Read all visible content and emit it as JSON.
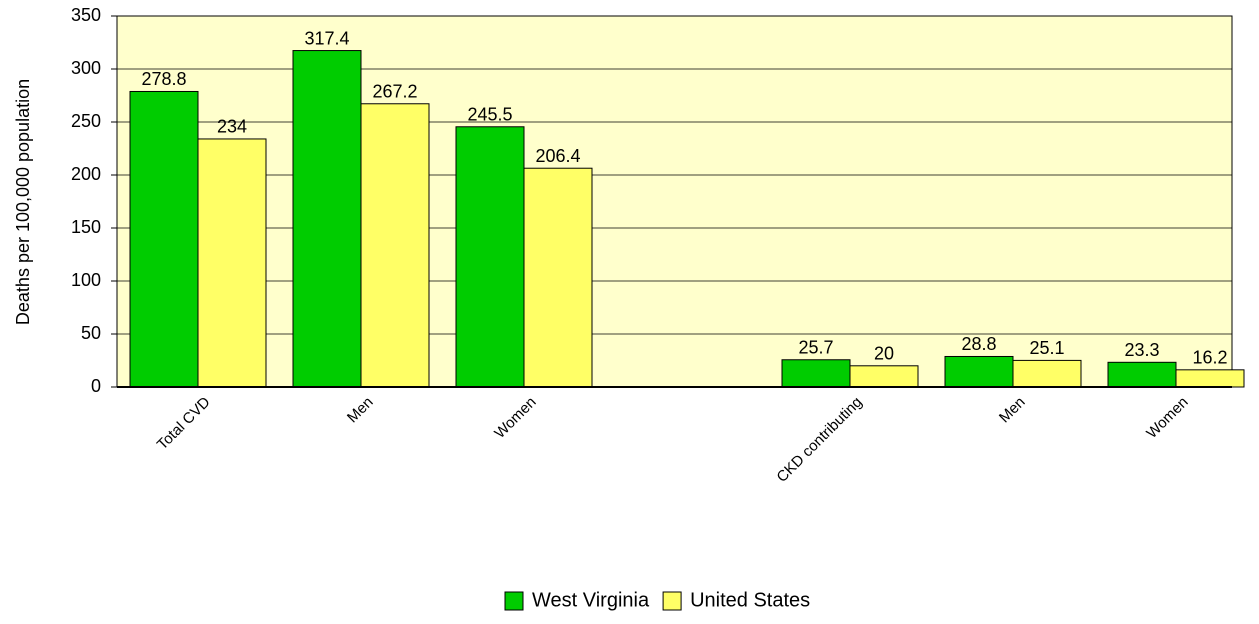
{
  "chart_data": {
    "type": "bar",
    "y_label": "Deaths per 100,000 population",
    "categories": [
      "Total CVD",
      "Men",
      "Women",
      null,
      "CKD contributing",
      "Men",
      "Women"
    ],
    "series": [
      {
        "name": "West Virginia",
        "color": "#00cc00",
        "values": [
          278.8,
          317.4,
          245.5,
          null,
          25.7,
          28.8,
          23.3
        ]
      },
      {
        "name": "United States",
        "color": "#ffff66",
        "values": [
          234,
          267.2,
          206.4,
          null,
          20,
          25.1,
          16.2
        ]
      }
    ],
    "ylim": [
      0,
      350
    ],
    "yticks": [
      0,
      50,
      100,
      150,
      200,
      250,
      300,
      350
    ],
    "grid": true,
    "plot_background": "#ffffcc",
    "legend": "bottom"
  }
}
